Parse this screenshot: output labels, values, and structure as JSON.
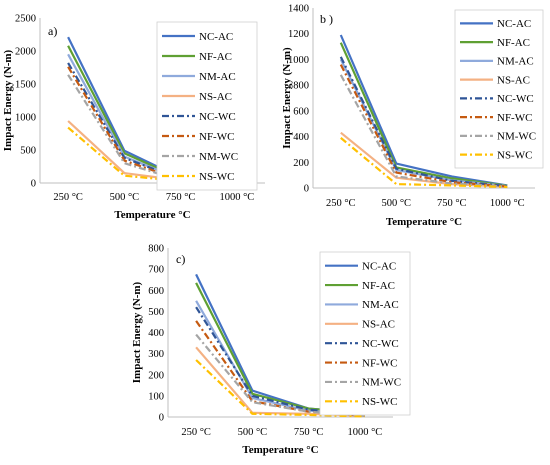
{
  "chart_data": [
    {
      "type": "line",
      "panel_label": "a)",
      "categories": [
        "250 °C",
        "500 °C",
        "750 °C",
        "1000 °C"
      ],
      "xlabel": "Temperature °C",
      "ylabel": "Impact Energy (N-m)",
      "ylim": [
        0,
        2500
      ],
      "yticks": [
        "0",
        "500",
        "1000",
        "1500",
        "2000",
        "2500"
      ],
      "grid": false,
      "legend_position": "top-right",
      "series": [
        {
          "name": "NC-AC",
          "values": [
            2210,
            490,
            80,
            40
          ]
        },
        {
          "name": "NF-AC",
          "values": [
            2080,
            450,
            70,
            35
          ]
        },
        {
          "name": "NM-AC",
          "values": [
            1950,
            400,
            60,
            30
          ]
        },
        {
          "name": "NS-AC",
          "values": [
            940,
            150,
            40,
            25
          ]
        },
        {
          "name": "NC-WC",
          "values": [
            1820,
            380,
            55,
            25
          ]
        },
        {
          "name": "NF-WC",
          "values": [
            1760,
            340,
            45,
            22
          ]
        },
        {
          "name": "NM-WC",
          "values": [
            1640,
            300,
            40,
            20
          ]
        },
        {
          "name": "NS-WC",
          "values": [
            840,
            110,
            30,
            15
          ]
        }
      ]
    },
    {
      "type": "line",
      "panel_label": "b )",
      "categories": [
        "250 °C",
        "500 °C",
        "750 °C",
        "1000 °C"
      ],
      "xlabel": "Temperature °C",
      "ylabel": "Impact Energy (N-m)",
      "ylim": [
        0,
        1400
      ],
      "yticks": [
        "0",
        "200",
        "400",
        "600",
        "800",
        "1000",
        "1200",
        "1400"
      ],
      "grid": false,
      "legend_position": "top-right",
      "series": [
        {
          "name": "NC-AC",
          "values": [
            1190,
            190,
            90,
            20
          ]
        },
        {
          "name": "NF-AC",
          "values": [
            1130,
            160,
            75,
            18
          ]
        },
        {
          "name": "NM-AC",
          "values": [
            1000,
            140,
            60,
            15
          ]
        },
        {
          "name": "NS-AC",
          "values": [
            430,
            80,
            30,
            10
          ]
        },
        {
          "name": "NC-WC",
          "values": [
            1020,
            150,
            55,
            15
          ]
        },
        {
          "name": "NF-WC",
          "values": [
            960,
            120,
            45,
            12
          ]
        },
        {
          "name": "NM-WC",
          "values": [
            880,
            90,
            35,
            10
          ]
        },
        {
          "name": "NS-WC",
          "values": [
            390,
            30,
            20,
            8
          ]
        }
      ]
    },
    {
      "type": "line",
      "panel_label": "c)",
      "categories": [
        "250 °C",
        "500 °C",
        "750 °C",
        "1000 °C"
      ],
      "xlabel": "Temperature °C",
      "ylabel": "Impact Energy (N-m)",
      "ylim": [
        0,
        800
      ],
      "yticks": [
        "0",
        "100",
        "200",
        "300",
        "400",
        "500",
        "600",
        "700",
        "800"
      ],
      "grid": false,
      "legend_position": "top-right",
      "series": [
        {
          "name": "NC-AC",
          "values": [
            675,
            125,
            40,
            20
          ]
        },
        {
          "name": "NF-AC",
          "values": [
            635,
            110,
            40,
            18
          ]
        },
        {
          "name": "NM-AC",
          "values": [
            550,
            90,
            30,
            12
          ]
        },
        {
          "name": "NS-AC",
          "values": [
            330,
            20,
            15,
            5
          ]
        },
        {
          "name": "NC-WC",
          "values": [
            520,
            100,
            35,
            8
          ]
        },
        {
          "name": "NF-WC",
          "values": [
            455,
            75,
            25,
            5
          ]
        },
        {
          "name": "NM-WC",
          "values": [
            390,
            70,
            25,
            5
          ]
        },
        {
          "name": "NS-WC",
          "values": [
            270,
            15,
            10,
            3
          ]
        }
      ]
    }
  ],
  "legend_styles": [
    {
      "name": "NC-AC",
      "color": "#4472c4",
      "dash": "solid"
    },
    {
      "name": "NF-AC",
      "color": "#5fa033",
      "dash": "solid"
    },
    {
      "name": "NM-AC",
      "color": "#8faadc",
      "dash": "solid"
    },
    {
      "name": "NS-AC",
      "color": "#f4b183",
      "dash": "solid"
    },
    {
      "name": "NC-WC",
      "color": "#2f5597",
      "dash": "dashdot"
    },
    {
      "name": "NF-WC",
      "color": "#c55a11",
      "dash": "dashdot"
    },
    {
      "name": "NM-WC",
      "color": "#a5a5a5",
      "dash": "dashdot"
    },
    {
      "name": "NS-WC",
      "color": "#ffc000",
      "dash": "dashdot"
    }
  ]
}
